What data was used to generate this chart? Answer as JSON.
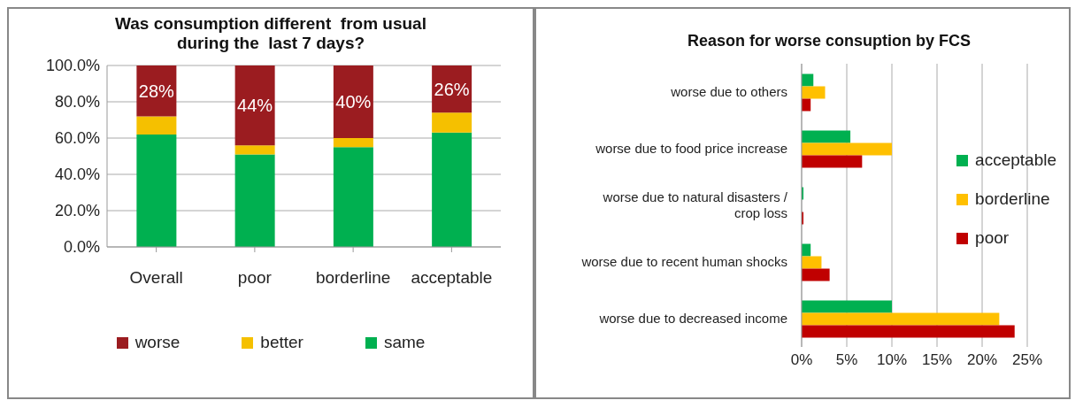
{
  "chart_data": [
    {
      "type": "bar",
      "stacked": true,
      "title": "Was consumption different  from usual during the  last 7 days?",
      "categories": [
        "Overall",
        "poor",
        "borderline",
        "acceptable"
      ],
      "series": [
        {
          "name": "same",
          "color": "#00b050",
          "values": [
            62,
            51,
            55,
            63
          ]
        },
        {
          "name": "better",
          "color": "#f5c000",
          "values": [
            10,
            5,
            5,
            11
          ]
        },
        {
          "name": "worse",
          "color": "#9b1c20",
          "values": [
            28,
            44,
            40,
            26
          ],
          "value_labels": [
            "28%",
            "44%",
            "40%",
            "26%"
          ]
        }
      ],
      "ylim": [
        0,
        100
      ],
      "yticks": [
        {
          "value": 0,
          "label": "0.0%"
        },
        {
          "value": 20,
          "label": "20.0%"
        },
        {
          "value": 40,
          "label": "40.0%"
        },
        {
          "value": 60,
          "label": "60.0%"
        },
        {
          "value": 80,
          "label": "80.0%"
        },
        {
          "value": 100,
          "label": "100.0%"
        }
      ],
      "grid": "y",
      "legend": "bottom"
    },
    {
      "type": "bar",
      "orientation": "horizontal",
      "title": "Reason for worse consuption by FCS",
      "categories": [
        "worse due to others",
        "worse due to food price increase",
        "worse due to natural disasters / crop loss",
        "worse due to recent human shocks",
        "worse due to decreased income"
      ],
      "series": [
        {
          "name": "acceptable",
          "color": "#00b050",
          "values": [
            1.3,
            5.4,
            0.2,
            1.0,
            10
          ]
        },
        {
          "name": "borderline",
          "color": "#ffc000",
          "values": [
            2.6,
            10,
            0,
            2.2,
            21.9
          ]
        },
        {
          "name": "poor",
          "color": "#c00000",
          "values": [
            1.0,
            6.7,
            0.2,
            3.1,
            23.6
          ]
        }
      ],
      "xlim": [
        0,
        25
      ],
      "xticks": [
        {
          "value": 0,
          "label": "0%"
        },
        {
          "value": 5,
          "label": "5%"
        },
        {
          "value": 10,
          "label": "10%"
        },
        {
          "value": 15,
          "label": "15%"
        },
        {
          "value": 20,
          "label": "20%"
        },
        {
          "value": 25,
          "label": "25%"
        }
      ],
      "grid": "x",
      "legend": "right"
    }
  ]
}
